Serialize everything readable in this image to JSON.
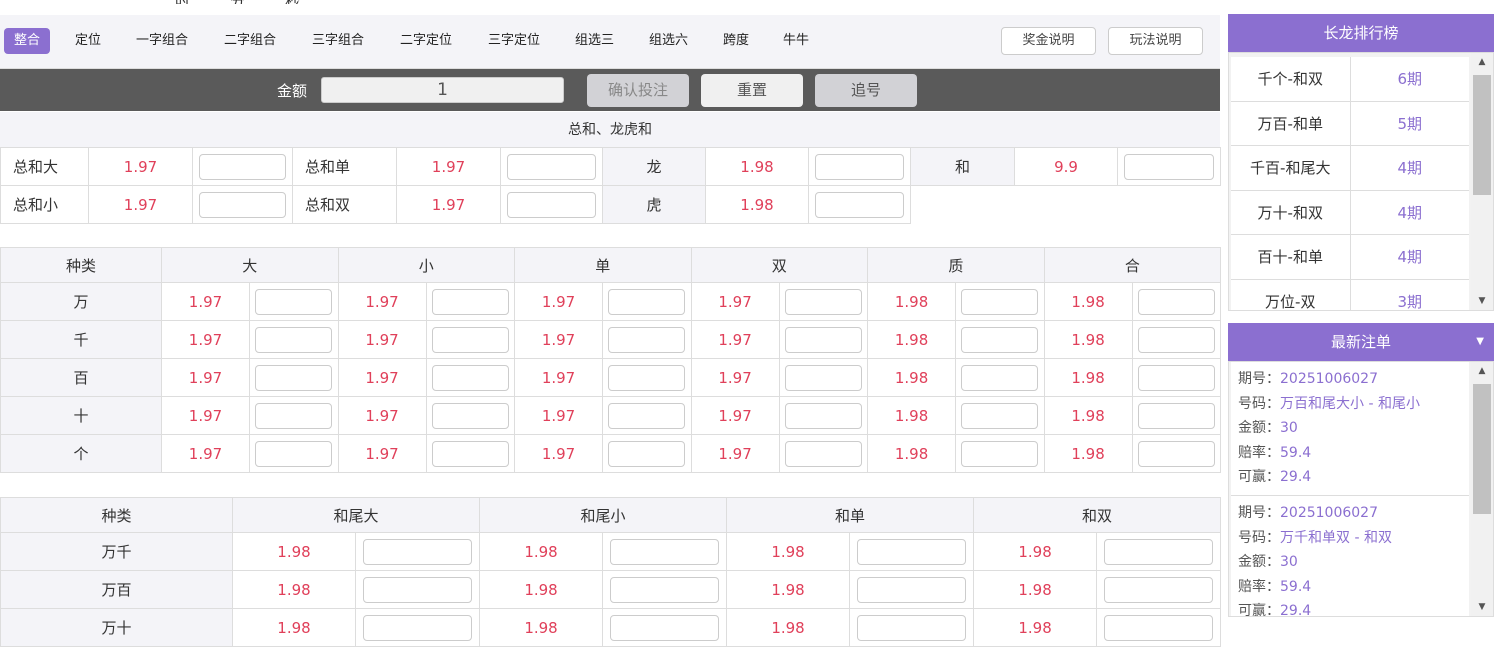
{
  "timer": [
    "时",
    "分",
    "秒"
  ],
  "tabs": [
    "整合",
    "定位",
    "一字组合",
    "二字组合",
    "三字组合",
    "二字定位",
    "三字定位",
    "组选三",
    "组选六",
    "跨度",
    "牛牛"
  ],
  "active_tab": "整合",
  "tab_buttons": {
    "prize": "奖金说明",
    "rules": "玩法说明"
  },
  "betbar": {
    "amount_label": "金额",
    "amount_value": "1",
    "confirm": "确认投注",
    "reset": "重置",
    "chase": "追号"
  },
  "section1": {
    "title": "总和、龙虎和",
    "rows": [
      [
        [
          "总和大",
          "1.97"
        ],
        [
          "总和单",
          "1.97"
        ],
        [
          "龙",
          "1.98"
        ],
        [
          "和",
          "9.9"
        ]
      ],
      [
        [
          "总和小",
          "1.97"
        ],
        [
          "总和双",
          "1.97"
        ],
        [
          "虎",
          "1.98"
        ]
      ]
    ]
  },
  "table2": {
    "headers": [
      "种类",
      "大",
      "小",
      "单",
      "双",
      "质",
      "合"
    ],
    "rows": [
      {
        "name": "万",
        "odds": [
          "1.97",
          "1.97",
          "1.97",
          "1.97",
          "1.98",
          "1.98"
        ]
      },
      {
        "name": "千",
        "odds": [
          "1.97",
          "1.97",
          "1.97",
          "1.97",
          "1.98",
          "1.98"
        ]
      },
      {
        "name": "百",
        "odds": [
          "1.97",
          "1.97",
          "1.97",
          "1.97",
          "1.98",
          "1.98"
        ]
      },
      {
        "name": "十",
        "odds": [
          "1.97",
          "1.97",
          "1.97",
          "1.97",
          "1.98",
          "1.98"
        ]
      },
      {
        "name": "个",
        "odds": [
          "1.97",
          "1.97",
          "1.97",
          "1.97",
          "1.98",
          "1.98"
        ]
      }
    ]
  },
  "table3": {
    "headers": [
      "种类",
      "和尾大",
      "和尾小",
      "和单",
      "和双"
    ],
    "rows": [
      {
        "name": "万千",
        "odds": [
          "1.98",
          "1.98",
          "1.98",
          "1.98"
        ]
      },
      {
        "name": "万百",
        "odds": [
          "1.98",
          "1.98",
          "1.98",
          "1.98"
        ]
      },
      {
        "name": "万十",
        "odds": [
          "1.98",
          "1.98",
          "1.98",
          "1.98"
        ]
      }
    ]
  },
  "longdragon": {
    "title": "长龙排行榜",
    "items": [
      [
        "千个-和双",
        "6期"
      ],
      [
        "万百-和单",
        "5期"
      ],
      [
        "千百-和尾大",
        "4期"
      ],
      [
        "万十-和双",
        "4期"
      ],
      [
        "百十-和单",
        "4期"
      ],
      [
        "万位-双",
        "3期"
      ]
    ]
  },
  "latest": {
    "title": "最新注单",
    "labels": [
      "期号：",
      "号码：",
      "金额：",
      "赔率：",
      "可赢："
    ],
    "bets": [
      [
        "20251006027",
        "万百和尾大小 - 和尾小",
        "30",
        "59.4",
        "29.4"
      ],
      [
        "20251006027",
        "万千和单双 - 和双",
        "30",
        "59.4",
        "29.4"
      ]
    ]
  },
  "colors": {
    "accent": "#8b6fd0",
    "odds": "#e0405a",
    "betbar": "#5a5a5a"
  }
}
